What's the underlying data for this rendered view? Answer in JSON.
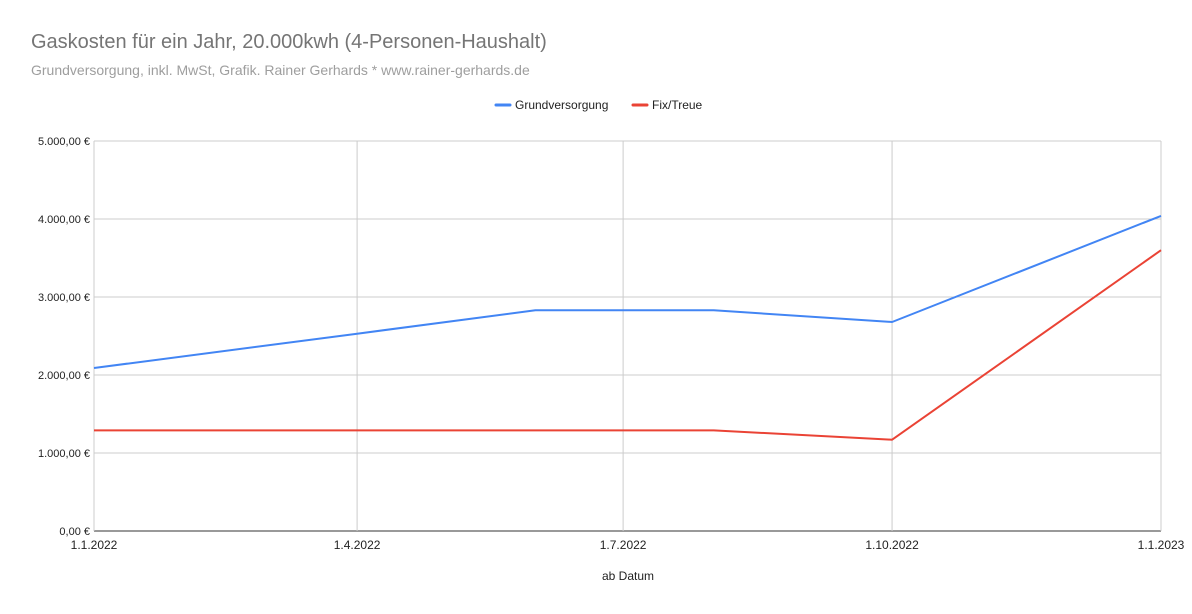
{
  "chart_data": {
    "type": "line",
    "title": "Gaskosten für ein Jahr, 20.000kwh (4-Personen-Haushalt)",
    "subtitle": "Grundversorgung, inkl. MwSt, Grafik. Rainer Gerhards * www.rainer-gerhards.de",
    "xlabel": "ab Datum",
    "ylabel": "",
    "x_type": "date",
    "x_ticks": [
      "2022-01-01",
      "2022-04-01",
      "2022-07-01",
      "2022-10-01",
      "2023-01-01"
    ],
    "x_tick_labels": [
      "1.1.2022",
      "1.4.2022",
      "1.7.2022",
      "1.10.2022",
      "1.1.2023"
    ],
    "xlim": [
      "2022-01-01",
      "2023-01-01"
    ],
    "ylim": [
      0,
      5000
    ],
    "y_ticks": [
      0,
      1000,
      2000,
      3000,
      4000,
      5000
    ],
    "y_tick_labels": [
      "0,00 €",
      "1.000,00 €",
      "2.000,00 €",
      "3.000,00 €",
      "4.000,00 €",
      "5.000,00 €"
    ],
    "grid": true,
    "legend_position": "top-center",
    "series": [
      {
        "name": "Grundversorgung",
        "color": "#4285f4",
        "points": [
          {
            "x": "2022-01-01",
            "y": 2090
          },
          {
            "x": "2022-04-01",
            "y": 2530
          },
          {
            "x": "2022-06-01",
            "y": 2830
          },
          {
            "x": "2022-08-01",
            "y": 2830
          },
          {
            "x": "2022-10-01",
            "y": 2680
          },
          {
            "x": "2023-01-01",
            "y": 4040
          }
        ]
      },
      {
        "name": "Fix/Treue",
        "color": "#ea4335",
        "points": [
          {
            "x": "2022-01-01",
            "y": 1290
          },
          {
            "x": "2022-08-01",
            "y": 1290
          },
          {
            "x": "2022-10-01",
            "y": 1170
          },
          {
            "x": "2023-01-01",
            "y": 3600
          }
        ]
      }
    ]
  }
}
